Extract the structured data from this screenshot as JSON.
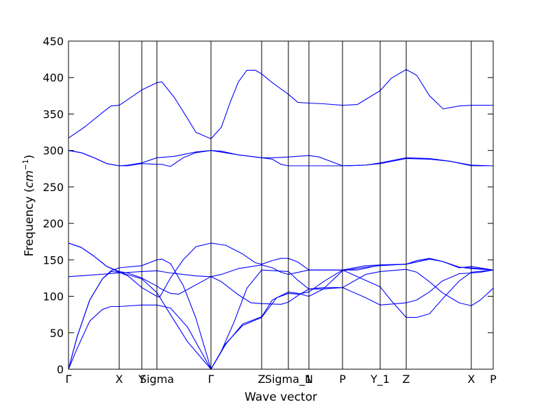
{
  "chart_data": {
    "type": "line",
    "title": "",
    "xlabel": "Wave vector",
    "ylabel_prefix": "Frequency (",
    "ylabel_unit_base": "cm",
    "ylabel_unit_exp": "−1",
    "ylabel_suffix": ")",
    "ylim": [
      0,
      450
    ],
    "yticks": [
      0,
      50,
      100,
      150,
      200,
      250,
      300,
      350,
      400,
      450
    ],
    "xlim": [
      0,
      1
    ],
    "grid": false,
    "legend": "none",
    "line_color": "#0000ff",
    "kpoint_ticks": [
      {
        "label": "Γ",
        "x": 0.0
      },
      {
        "label": "X",
        "x": 0.1194
      },
      {
        "label": "Y",
        "x": 0.1726
      },
      {
        "label": "Sigma",
        "x": 0.2081
      },
      {
        "label": "Γ",
        "x": 0.3355
      },
      {
        "label": "Z",
        "x": 0.4548
      },
      {
        "label": "Sigma_1",
        "x": 0.5177
      },
      {
        "label": "N",
        "x": 0.5661
      },
      {
        "label": "P",
        "x": 0.6452
      },
      {
        "label": "Y_1",
        "x": 0.7339
      },
      {
        "label": "Z",
        "x": 0.7952
      },
      {
        "label": "X",
        "x": 0.9484
      },
      {
        "label": "P",
        "x": 1.0
      }
    ],
    "series": [
      {
        "points": [
          [
            0.0,
            317
          ],
          [
            0.04,
            333
          ],
          [
            0.08,
            352
          ],
          [
            0.1,
            361
          ],
          [
            0.1194,
            362
          ],
          [
            0.14,
            370
          ],
          [
            0.1726,
            383
          ],
          [
            0.2081,
            393
          ],
          [
            0.22,
            394
          ],
          [
            0.25,
            372
          ],
          [
            0.28,
            344
          ],
          [
            0.3,
            325
          ],
          [
            0.3355,
            316
          ],
          [
            0.36,
            332
          ],
          [
            0.38,
            365
          ],
          [
            0.4,
            394
          ],
          [
            0.42,
            410
          ],
          [
            0.44,
            410
          ],
          [
            0.4548,
            405
          ],
          [
            0.48,
            393
          ],
          [
            0.5177,
            377
          ],
          [
            0.54,
            366
          ],
          [
            0.5661,
            365
          ],
          [
            0.6,
            364
          ],
          [
            0.6452,
            362
          ],
          [
            0.68,
            363
          ],
          [
            0.7339,
            382
          ],
          [
            0.76,
            399
          ],
          [
            0.7952,
            411
          ],
          [
            0.82,
            403
          ],
          [
            0.85,
            375
          ],
          [
            0.8823,
            357
          ],
          [
            0.92,
            361
          ],
          [
            0.9484,
            362
          ],
          [
            1.0,
            362
          ]
        ]
      },
      {
        "points": [
          [
            0.0,
            300
          ],
          [
            0.03,
            297
          ],
          [
            0.06,
            290
          ],
          [
            0.09,
            282
          ],
          [
            0.1194,
            279
          ],
          [
            0.14,
            279
          ],
          [
            0.1726,
            282
          ],
          [
            0.2081,
            281
          ],
          [
            0.22,
            281
          ],
          [
            0.24,
            278
          ],
          [
            0.27,
            290
          ],
          [
            0.3,
            297
          ],
          [
            0.3355,
            300
          ],
          [
            0.36,
            299
          ],
          [
            0.4,
            294
          ],
          [
            0.4548,
            290
          ],
          [
            0.48,
            290
          ],
          [
            0.5177,
            291
          ],
          [
            0.5661,
            293
          ],
          [
            0.59,
            291
          ],
          [
            0.6452,
            279
          ],
          [
            0.7,
            280
          ],
          [
            0.7339,
            282
          ],
          [
            0.7952,
            289
          ],
          [
            0.85,
            288
          ],
          [
            0.9,
            285
          ],
          [
            0.9484,
            279
          ],
          [
            1.0,
            279
          ]
        ]
      },
      {
        "points": [
          [
            0.0,
            300
          ],
          [
            0.03,
            297
          ],
          [
            0.06,
            290
          ],
          [
            0.09,
            282
          ],
          [
            0.1194,
            279
          ],
          [
            0.14,
            280
          ],
          [
            0.1726,
            283
          ],
          [
            0.2081,
            290
          ],
          [
            0.25,
            292
          ],
          [
            0.3,
            298
          ],
          [
            0.3355,
            300
          ],
          [
            0.4,
            294
          ],
          [
            0.4548,
            290
          ],
          [
            0.48,
            288
          ],
          [
            0.5,
            281
          ],
          [
            0.5177,
            279
          ],
          [
            0.5661,
            279
          ],
          [
            0.6452,
            279
          ],
          [
            0.7,
            280
          ],
          [
            0.7339,
            283
          ],
          [
            0.7952,
            290
          ],
          [
            0.85,
            289
          ],
          [
            0.9,
            285
          ],
          [
            0.9484,
            280
          ],
          [
            1.0,
            279
          ]
        ]
      },
      {
        "points": [
          [
            0.0,
            173
          ],
          [
            0.03,
            167
          ],
          [
            0.06,
            155
          ],
          [
            0.09,
            141
          ],
          [
            0.1194,
            133
          ],
          [
            0.14,
            128
          ],
          [
            0.1726,
            112
          ],
          [
            0.2081,
            100
          ],
          [
            0.215,
            99
          ],
          [
            0.24,
            125
          ],
          [
            0.27,
            150
          ],
          [
            0.3,
            168
          ],
          [
            0.3355,
            173
          ],
          [
            0.37,
            170
          ],
          [
            0.41,
            158
          ],
          [
            0.44,
            146
          ],
          [
            0.4548,
            144
          ],
          [
            0.48,
            149
          ],
          [
            0.5,
            152
          ],
          [
            0.5177,
            152
          ],
          [
            0.54,
            147
          ],
          [
            0.5661,
            136
          ],
          [
            0.6452,
            136
          ],
          [
            0.7339,
            113
          ],
          [
            0.76,
            94
          ],
          [
            0.7952,
            71
          ],
          [
            0.82,
            71
          ],
          [
            0.85,
            76
          ],
          [
            0.88,
            96
          ],
          [
            0.92,
            121
          ],
          [
            0.9484,
            133
          ],
          [
            1.0,
            136
          ]
        ]
      },
      {
        "points": [
          [
            0.0,
            173
          ],
          [
            0.03,
            167
          ],
          [
            0.06,
            155
          ],
          [
            0.09,
            141
          ],
          [
            0.1194,
            134
          ],
          [
            0.14,
            132
          ],
          [
            0.1726,
            125
          ],
          [
            0.2081,
            114
          ],
          [
            0.215,
            111
          ],
          [
            0.24,
            104
          ],
          [
            0.26,
            103
          ],
          [
            0.3355,
            127
          ],
          [
            0.36,
            130
          ],
          [
            0.4,
            138
          ],
          [
            0.4548,
            143
          ],
          [
            0.48,
            139
          ],
          [
            0.5,
            133
          ],
          [
            0.5177,
            130
          ],
          [
            0.5661,
            136
          ],
          [
            0.6452,
            136
          ],
          [
            0.7,
            142
          ],
          [
            0.7339,
            143
          ],
          [
            0.7952,
            144
          ],
          [
            0.82,
            149
          ],
          [
            0.85,
            152
          ],
          [
            0.88,
            148
          ],
          [
            0.92,
            139
          ],
          [
            0.9484,
            141
          ],
          [
            1.0,
            136
          ]
        ]
      },
      {
        "points": [
          [
            0.0,
            127
          ],
          [
            0.05,
            129
          ],
          [
            0.1194,
            132
          ],
          [
            0.1726,
            134
          ],
          [
            0.2081,
            135
          ],
          [
            0.24,
            132
          ],
          [
            0.3,
            128
          ],
          [
            0.3355,
            127
          ],
          [
            0.36,
            120
          ],
          [
            0.4,
            102
          ],
          [
            0.43,
            91
          ],
          [
            0.4548,
            90
          ],
          [
            0.5,
            89
          ],
          [
            0.5177,
            92
          ],
          [
            0.54,
            101
          ],
          [
            0.5661,
            110
          ],
          [
            0.6,
            110
          ],
          [
            0.6452,
            112
          ],
          [
            0.7,
            98
          ],
          [
            0.7339,
            88
          ],
          [
            0.7952,
            91
          ],
          [
            0.82,
            95
          ],
          [
            0.85,
            106
          ],
          [
            0.88,
            121
          ],
          [
            0.92,
            131
          ],
          [
            0.9484,
            132
          ],
          [
            0.97,
            133
          ],
          [
            1.0,
            136
          ]
        ]
      },
      {
        "points": [
          [
            0.0,
            0
          ],
          [
            0.02,
            44
          ],
          [
            0.05,
            95
          ],
          [
            0.08,
            124
          ],
          [
            0.1,
            135
          ],
          [
            0.1194,
            139
          ],
          [
            0.1726,
            142
          ],
          [
            0.2081,
            150
          ],
          [
            0.22,
            151
          ],
          [
            0.24,
            145
          ],
          [
            0.27,
            115
          ],
          [
            0.3,
            70
          ],
          [
            0.3355,
            0
          ],
          [
            0.36,
            25
          ],
          [
            0.39,
            65
          ],
          [
            0.42,
            111
          ],
          [
            0.4548,
            136
          ],
          [
            0.5177,
            134
          ],
          [
            0.54,
            122
          ],
          [
            0.5661,
            110
          ],
          [
            0.6,
            112
          ],
          [
            0.6452,
            112
          ],
          [
            0.7,
            130
          ],
          [
            0.7339,
            134
          ],
          [
            0.7952,
            137
          ],
          [
            0.82,
            133
          ],
          [
            0.85,
            120
          ],
          [
            0.88,
            105
          ],
          [
            0.92,
            91
          ],
          [
            0.9484,
            87
          ],
          [
            0.97,
            95
          ],
          [
            1.0,
            111
          ]
        ]
      },
      {
        "points": [
          [
            0.0,
            0
          ],
          [
            0.02,
            44
          ],
          [
            0.05,
            95
          ],
          [
            0.08,
            124
          ],
          [
            0.1,
            134
          ],
          [
            0.1194,
            133
          ],
          [
            0.1726,
            124
          ],
          [
            0.2081,
            105
          ],
          [
            0.24,
            75
          ],
          [
            0.28,
            38
          ],
          [
            0.3355,
            0
          ],
          [
            0.37,
            34
          ],
          [
            0.41,
            62
          ],
          [
            0.4548,
            72
          ],
          [
            0.48,
            95
          ],
          [
            0.5177,
            106
          ],
          [
            0.54,
            104
          ],
          [
            0.5661,
            100
          ],
          [
            0.6,
            110
          ],
          [
            0.6452,
            135
          ],
          [
            0.7,
            140
          ],
          [
            0.7339,
            142
          ],
          [
            0.7952,
            144
          ],
          [
            0.85,
            151
          ],
          [
            0.88,
            148
          ],
          [
            0.92,
            140
          ],
          [
            0.9484,
            138
          ],
          [
            1.0,
            136
          ]
        ]
      },
      {
        "points": [
          [
            0.0,
            0
          ],
          [
            0.02,
            28
          ],
          [
            0.05,
            66
          ],
          [
            0.08,
            82
          ],
          [
            0.1,
            86
          ],
          [
            0.1194,
            86
          ],
          [
            0.1726,
            88
          ],
          [
            0.2081,
            88
          ],
          [
            0.24,
            84
          ],
          [
            0.28,
            58
          ],
          [
            0.3355,
            0
          ],
          [
            0.37,
            35
          ],
          [
            0.41,
            60
          ],
          [
            0.4548,
            71
          ],
          [
            0.49,
            98
          ],
          [
            0.5177,
            104
          ],
          [
            0.54,
            103
          ],
          [
            0.5661,
            106
          ],
          [
            0.6,
            120
          ],
          [
            0.6452,
            136
          ],
          [
            0.68,
            136
          ],
          [
            0.7339,
            143
          ],
          [
            0.7952,
            144
          ],
          [
            0.85,
            151
          ],
          [
            0.88,
            148
          ],
          [
            0.92,
            140
          ],
          [
            0.9484,
            139
          ],
          [
            1.0,
            136
          ]
        ]
      }
    ]
  }
}
